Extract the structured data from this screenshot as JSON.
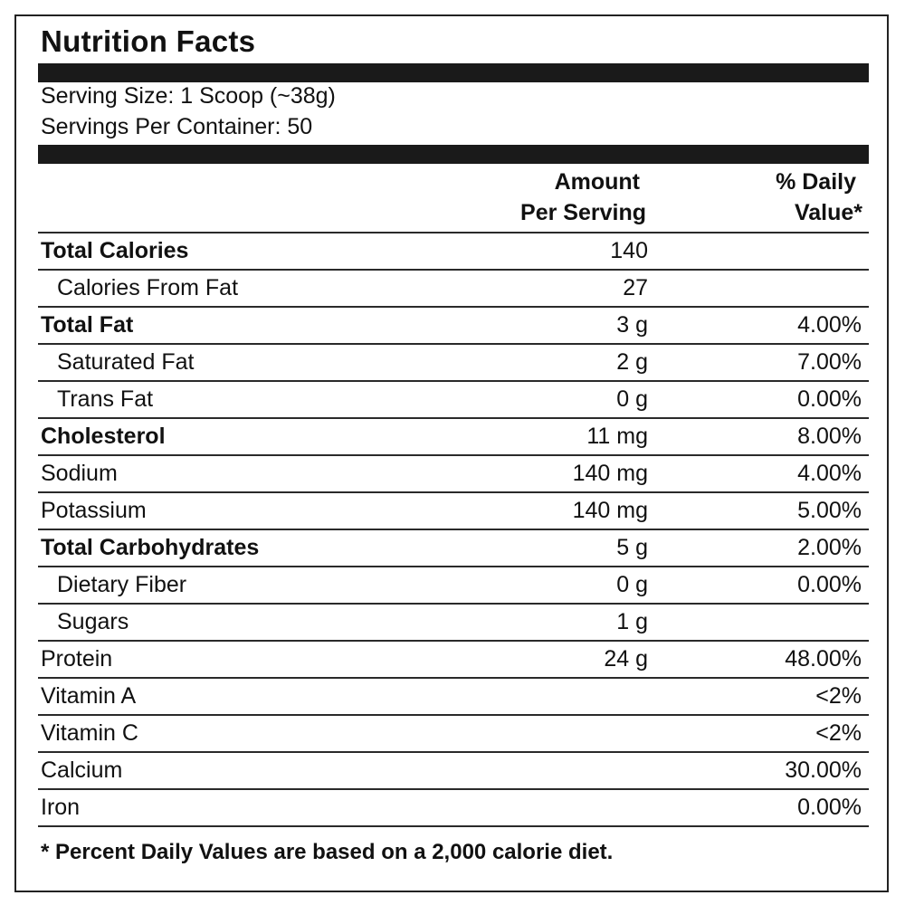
{
  "label": {
    "title": "Nutrition Facts",
    "serving_size": "Serving Size: 1 Scoop (~38g)",
    "servings_per_container": "Servings Per Container: 50",
    "header": {
      "amount_line1": "Amount",
      "amount_line2": "Per Serving",
      "dv_line1": "% Daily",
      "dv_line2": "Value*"
    },
    "rows": [
      {
        "name": "Total Calories",
        "amount": "140",
        "dv": ""
      },
      {
        "name": "Calories From Fat",
        "amount": "27",
        "dv": ""
      },
      {
        "name": "Total Fat",
        "amount": "3 g",
        "dv": "4.00%"
      },
      {
        "name": "Saturated Fat",
        "amount": "2 g",
        "dv": "7.00%"
      },
      {
        "name": "Trans Fat",
        "amount": "0 g",
        "dv": "0.00%"
      },
      {
        "name": "Cholesterol",
        "amount": "11 mg",
        "dv": "8.00%"
      },
      {
        "name": "Sodium",
        "amount": "140 mg",
        "dv": "4.00%"
      },
      {
        "name": "Potassium",
        "amount": "140 mg",
        "dv": "5.00%"
      },
      {
        "name": "Total Carbohydrates",
        "amount": "5 g",
        "dv": "2.00%"
      },
      {
        "name": "Dietary Fiber",
        "amount": "0 g",
        "dv": "0.00%"
      },
      {
        "name": "Sugars",
        "amount": "1 g",
        "dv": ""
      },
      {
        "name": "Protein",
        "amount": "24 g",
        "dv": "48.00%"
      },
      {
        "name": "Vitamin A",
        "amount": "",
        "dv": "<2%"
      },
      {
        "name": "Vitamin C",
        "amount": "",
        "dv": "<2%"
      },
      {
        "name": "Calcium",
        "amount": "",
        "dv": "30.00%"
      },
      {
        "name": "Iron",
        "amount": "",
        "dv": "0.00%"
      }
    ],
    "footnote": "* Percent Daily Values are based on a 2,000 calorie diet."
  }
}
